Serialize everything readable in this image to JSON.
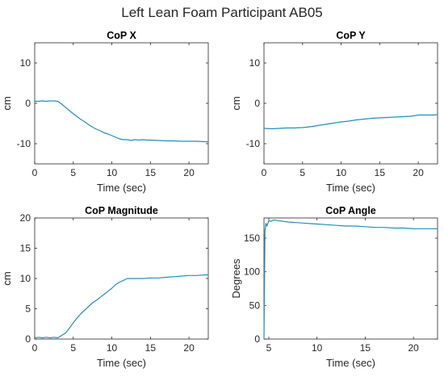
{
  "figure_title": "Left Lean Foam Participant AB05",
  "line_color": "#1f8fbf",
  "chart_data": [
    {
      "type": "line",
      "title": "CoP X",
      "xlabel": "Time (sec)",
      "ylabel": "cm",
      "xlim": [
        0,
        22.5
      ],
      "ylim": [
        -15,
        15
      ],
      "xticks": [
        0,
        5,
        10,
        15,
        20
      ],
      "yticks": [
        -10,
        0,
        10
      ],
      "grid": false,
      "series": [
        {
          "x": [
            0,
            0.5,
            1,
            1.5,
            2,
            2.5,
            3,
            3.5,
            4,
            4.5,
            5,
            5.5,
            6,
            6.5,
            7,
            7.5,
            8,
            8.5,
            9,
            9.5,
            10,
            10.5,
            11,
            11.5,
            12,
            12.5,
            13,
            13.5,
            14,
            14.5,
            15,
            16,
            17,
            18,
            19,
            20,
            21,
            22,
            22.5
          ],
          "y": [
            0.5,
            0.5,
            0.6,
            0.5,
            0.6,
            0.6,
            0.5,
            -0.2,
            -1.0,
            -1.8,
            -2.6,
            -3.3,
            -4.0,
            -4.6,
            -5.3,
            -5.9,
            -6.4,
            -6.8,
            -7.3,
            -7.6,
            -8.0,
            -8.4,
            -8.8,
            -9.0,
            -9.0,
            -9.2,
            -9.0,
            -9.1,
            -9.0,
            -9.1,
            -9.1,
            -9.2,
            -9.3,
            -9.3,
            -9.4,
            -9.4,
            -9.4,
            -9.5,
            -9.5
          ]
        }
      ]
    },
    {
      "type": "line",
      "title": "CoP Y",
      "xlabel": "Time (sec)",
      "ylabel": "cm",
      "xlim": [
        0,
        22.5
      ],
      "ylim": [
        -15,
        15
      ],
      "xticks": [
        0,
        5,
        10,
        15,
        20
      ],
      "yticks": [
        -10,
        0,
        10
      ],
      "grid": false,
      "series": [
        {
          "x": [
            0,
            1,
            2,
            3,
            4,
            5,
            6,
            7,
            8,
            9,
            10,
            11,
            12,
            13,
            14,
            15,
            16,
            17,
            18,
            19,
            20,
            21,
            22,
            22.5
          ],
          "y": [
            -6.2,
            -6.3,
            -6.2,
            -6.1,
            -6.1,
            -6.0,
            -5.8,
            -5.5,
            -5.2,
            -4.9,
            -4.6,
            -4.4,
            -4.1,
            -3.9,
            -3.7,
            -3.6,
            -3.5,
            -3.4,
            -3.3,
            -3.2,
            -2.9,
            -2.9,
            -2.9,
            -2.8
          ]
        }
      ]
    },
    {
      "type": "line",
      "title": "CoP Magnitude",
      "xlabel": "Time (sec)",
      "ylabel": "cm",
      "xlim": [
        0,
        22.5
      ],
      "ylim": [
        0,
        20
      ],
      "xticks": [
        0,
        5,
        10,
        15,
        20
      ],
      "yticks": [
        0,
        5,
        10,
        15,
        20
      ],
      "grid": false,
      "series": [
        {
          "x": [
            0,
            0.5,
            1,
            1.5,
            2,
            2.5,
            3,
            3.5,
            4,
            4.5,
            5,
            5.5,
            6,
            6.5,
            7,
            7.5,
            8,
            8.5,
            9,
            9.5,
            10,
            10.5,
            11,
            11.5,
            12,
            12.5,
            13,
            14,
            15,
            16,
            17,
            18,
            19,
            20,
            21,
            22,
            22.5
          ],
          "y": [
            0.2,
            0.3,
            0.2,
            0.3,
            0.2,
            0.3,
            0.2,
            0.6,
            1.0,
            1.8,
            2.7,
            3.5,
            4.2,
            4.8,
            5.4,
            6.0,
            6.4,
            6.9,
            7.4,
            7.9,
            8.4,
            9.0,
            9.4,
            9.7,
            10.0,
            10.0,
            10.0,
            10.0,
            10.1,
            10.1,
            10.2,
            10.3,
            10.4,
            10.5,
            10.5,
            10.6,
            10.6
          ]
        }
      ]
    },
    {
      "type": "line",
      "title": "CoP Angle",
      "xlabel": "Time (sec)",
      "ylabel": "Degrees",
      "xlim": [
        4.5,
        22.5
      ],
      "ylim": [
        0,
        180
      ],
      "xticks": [
        5,
        10,
        15,
        20
      ],
      "yticks": [
        0,
        50,
        100,
        150
      ],
      "grid": false,
      "series": [
        {
          "x": [
            4.5,
            4.6,
            4.7,
            4.8,
            5.0,
            5.2,
            5.5,
            6,
            7,
            8,
            9,
            10,
            11,
            12,
            13,
            14,
            15,
            16,
            17,
            18,
            19,
            20,
            21,
            22,
            22.5
          ],
          "y": [
            0,
            160,
            172,
            168,
            176,
            175,
            177,
            176,
            174,
            173,
            172,
            171,
            170,
            169,
            168,
            168,
            167,
            166,
            166,
            165,
            165,
            164,
            164,
            164,
            164
          ]
        }
      ]
    }
  ]
}
